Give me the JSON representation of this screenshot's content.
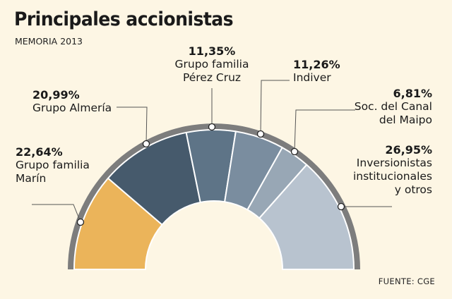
{
  "header": {
    "title": "Principales accionistas",
    "subtitle": "MEMORIA 2013"
  },
  "footer": {
    "source": "FUENTE: CGE"
  },
  "colors": {
    "background": "#fdf6e4",
    "ring": "#7d7d7d",
    "leader": "#555555"
  },
  "chart_data": {
    "type": "pie",
    "variant": "semicircle-donut",
    "title": "Principales accionistas",
    "subtitle": "MEMORIA 2013",
    "slices": [
      {
        "label": "Grupo familia Marín",
        "label_lines": [
          "Grupo familia",
          "Marín"
        ],
        "value": 22.64,
        "display": "22,64%",
        "color": "#ebb45a"
      },
      {
        "label": "Grupo Almería",
        "label_lines": [
          "Grupo Almería"
        ],
        "value": 20.99,
        "display": "20,99%",
        "color": "#465a6c"
      },
      {
        "label": "Grupo familia Pérez Cruz",
        "label_lines": [
          "Grupo familia",
          "Pérez Cruz"
        ],
        "value": 11.35,
        "display": "11,35%",
        "color": "#5e7487"
      },
      {
        "label": "Indiver",
        "label_lines": [
          "Indiver"
        ],
        "value": 11.26,
        "display": "11,26%",
        "color": "#7a8d9f"
      },
      {
        "label": "Soc. del Canal del Maipo",
        "label_lines": [
          "Soc. del Canal",
          "del Maipo"
        ],
        "value": 6.81,
        "display": "6,81%",
        "color": "#98a7b5"
      },
      {
        "label": "Inversionistas institucionales y otros",
        "label_lines": [
          "Inversionistas",
          "institucionales",
          "y otros"
        ],
        "value": 26.95,
        "display": "26,95%",
        "color": "#b8c3cf"
      }
    ]
  }
}
